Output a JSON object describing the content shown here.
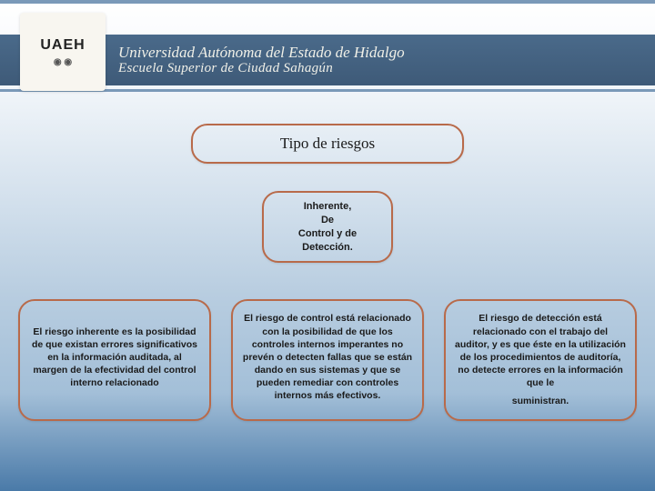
{
  "header": {
    "line1": "Universidad Autónoma del Estado de Hidalgo",
    "line2": "Escuela Superior de Ciudad Sahagún",
    "logo_text": "UAEH",
    "stripe_color": "#7a99b8",
    "bar_gradient_top": "#4a6a8a",
    "bar_gradient_bottom": "#3e5a78",
    "text_color": "#f0f0e8"
  },
  "diagram": {
    "title": {
      "text": "Tipo de riesgos",
      "border_color": "#b86a4a",
      "fontsize": 17
    },
    "subtitle": {
      "lines": [
        "Inherente,",
        "De",
        "Control y de",
        "Detección."
      ],
      "border_color": "#b86a4a",
      "fontsize": 11
    },
    "boxes": [
      {
        "text": "El riesgo inherente es la posibilidad de que existan errores significativos en la información auditada, al margen de la efectividad del control interno relacionado",
        "trailer": "",
        "border_color": "#b86a4a"
      },
      {
        "text": "El riesgo de control está relacionado con la posibilidad de que los controles internos imperantes no prevén o detecten fallas que se están dando en sus sistemas y que se pueden remediar con controles internos más efectivos.",
        "trailer": "",
        "border_color": "#b86a4a"
      },
      {
        "text": "El riesgo de detección está relacionado con el trabajo del auditor, y es que éste en la utilización de los procedimientos de auditoría, no detecte errores en la información que le",
        "trailer": "suministran.",
        "border_color": "#b86a4a"
      }
    ]
  },
  "styling": {
    "box_radius": 18,
    "detail_fontsize": 10.5,
    "font_family_title": "Georgia, serif",
    "font_family_body": "Arial, sans-serif",
    "body_gradient": [
      "#ffffff",
      "#f5f8fb",
      "#d4e1ed",
      "#b8cde0",
      "#a3bfd8",
      "#4a7aa8"
    ]
  }
}
